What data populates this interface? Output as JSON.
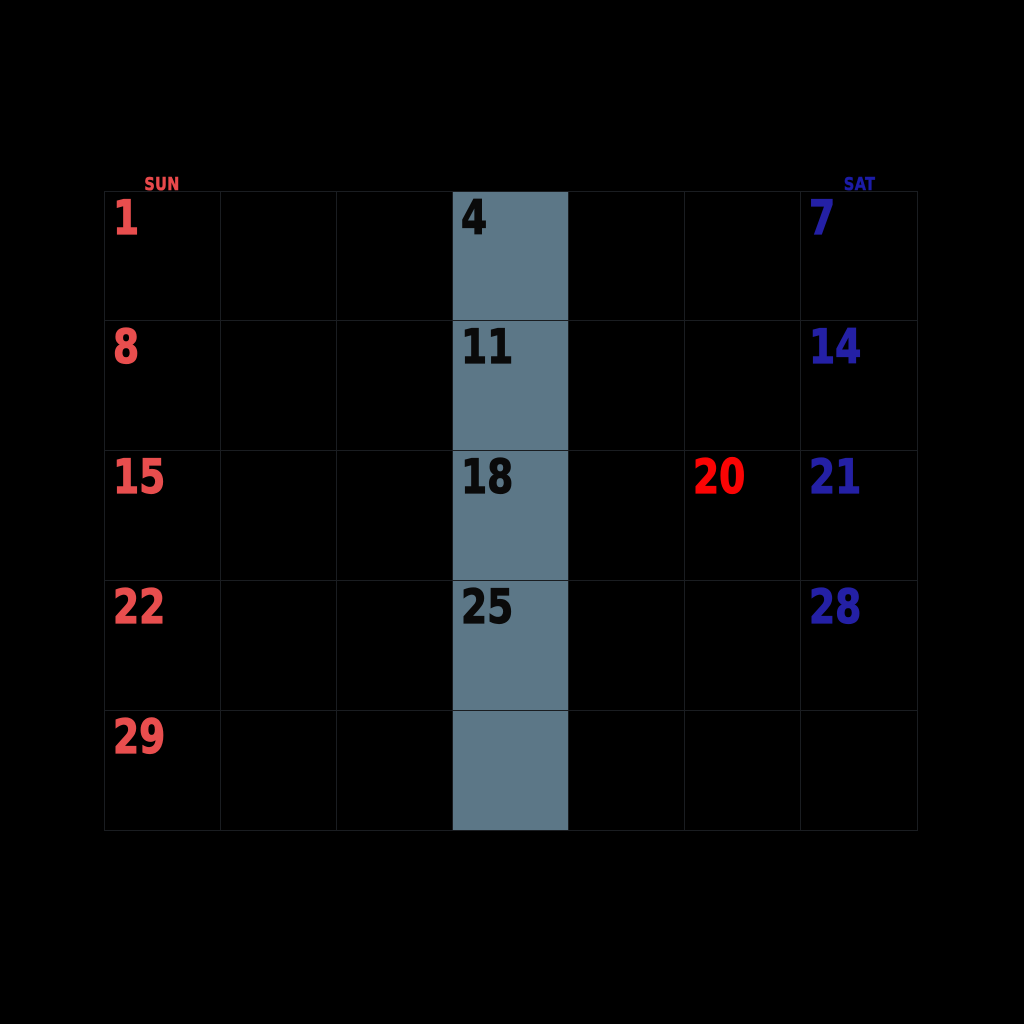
{
  "calendar": {
    "visible_day_headers": [
      {
        "col": 0,
        "label": "SUN",
        "style": "header_sun"
      },
      {
        "col": 6,
        "label": "SAT",
        "style": "header_sat"
      }
    ],
    "highlighted_column_index": 3,
    "weeks": [
      [
        {
          "day": "1",
          "style": "sunday"
        },
        {
          "day": "",
          "style": ""
        },
        {
          "day": "",
          "style": ""
        },
        {
          "day": "4",
          "style": "wednesday"
        },
        {
          "day": "",
          "style": ""
        },
        {
          "day": "",
          "style": ""
        },
        {
          "day": "7",
          "style": "saturday"
        }
      ],
      [
        {
          "day": "8",
          "style": "sunday"
        },
        {
          "day": "",
          "style": ""
        },
        {
          "day": "",
          "style": ""
        },
        {
          "day": "11",
          "style": "wednesday"
        },
        {
          "day": "",
          "style": ""
        },
        {
          "day": "",
          "style": ""
        },
        {
          "day": "14",
          "style": "saturday"
        }
      ],
      [
        {
          "day": "15",
          "style": "sunday"
        },
        {
          "day": "",
          "style": ""
        },
        {
          "day": "",
          "style": ""
        },
        {
          "day": "18",
          "style": "wednesday"
        },
        {
          "day": "",
          "style": ""
        },
        {
          "day": "20",
          "style": "holiday"
        },
        {
          "day": "21",
          "style": "saturday"
        }
      ],
      [
        {
          "day": "22",
          "style": "sunday"
        },
        {
          "day": "",
          "style": ""
        },
        {
          "day": "",
          "style": ""
        },
        {
          "day": "25",
          "style": "wednesday"
        },
        {
          "day": "",
          "style": ""
        },
        {
          "day": "",
          "style": ""
        },
        {
          "day": "28",
          "style": "saturday"
        }
      ],
      [
        {
          "day": "29",
          "style": "sunday"
        },
        {
          "day": "",
          "style": ""
        },
        {
          "day": "",
          "style": ""
        },
        {
          "day": "",
          "style": ""
        },
        {
          "day": "",
          "style": ""
        },
        {
          "day": "",
          "style": ""
        },
        {
          "day": "",
          "style": ""
        }
      ]
    ]
  },
  "colors": {
    "background": "#000000",
    "grid_line": "#1a1d21",
    "highlight": "#5c7787",
    "styles": {
      "sunday": "#e84e4e",
      "saturday": "#2420a5",
      "wednesday": "#0a0a0a",
      "holiday": "#fb0404",
      "header_sun": "#e8494b",
      "header_sat": "#1c1ca7"
    }
  }
}
